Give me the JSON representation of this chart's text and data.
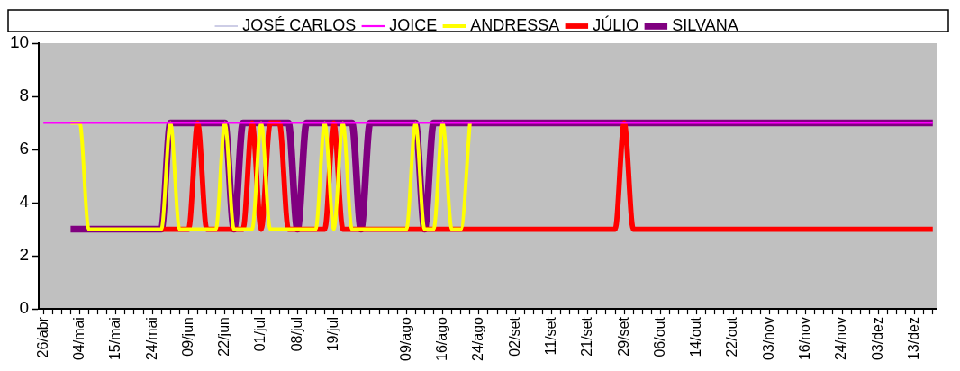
{
  "chart_data": {
    "type": "line",
    "categories": [
      "26/abr",
      null,
      null,
      null,
      "04/mai",
      null,
      null,
      null,
      "15/mai",
      null,
      null,
      null,
      "24/mai",
      null,
      null,
      null,
      "09/jun",
      null,
      null,
      null,
      "22/jun",
      null,
      null,
      null,
      "01/jul",
      null,
      null,
      null,
      "08/jul",
      null,
      null,
      null,
      "19/jul",
      null,
      null,
      null,
      null,
      null,
      null,
      null,
      "09/ago",
      null,
      null,
      null,
      "16/ago",
      null,
      null,
      null,
      "24/ago",
      null,
      null,
      null,
      "02/set",
      null,
      null,
      null,
      "11/set",
      null,
      null,
      null,
      "21/set",
      null,
      null,
      null,
      "29/set",
      null,
      null,
      null,
      "06/out",
      null,
      null,
      null,
      "14/out",
      null,
      null,
      null,
      "22/out",
      null,
      null,
      null,
      "03/nov",
      null,
      null,
      null,
      "16/nov",
      null,
      null,
      null,
      "24/nov",
      null,
      null,
      null,
      "03/dez",
      null,
      null,
      null,
      "13/dez",
      null,
      null
    ],
    "series": [
      {
        "name": "JOSÉ CARLOS",
        "color": "#000080",
        "values": [
          null,
          null,
          null,
          null,
          null,
          null,
          null,
          null,
          null,
          null,
          null,
          null,
          null,
          null,
          null,
          null,
          null,
          null,
          null,
          null,
          null,
          null,
          null,
          null,
          null,
          null,
          null,
          null,
          null,
          null,
          null,
          null,
          null,
          null,
          null,
          null,
          null,
          null,
          null,
          null,
          null,
          null,
          null,
          null,
          null,
          null,
          null,
          null,
          null,
          null,
          null,
          null,
          null,
          null,
          null,
          null,
          null,
          null,
          null,
          null,
          null,
          null,
          null,
          null,
          null,
          null,
          null,
          null,
          null,
          null,
          null,
          null,
          null,
          null,
          null,
          null,
          null,
          null,
          null,
          null,
          null,
          null,
          null,
          null,
          null,
          null,
          null,
          null,
          null,
          null,
          null,
          null,
          null,
          null,
          null,
          null,
          null,
          null,
          null
        ]
      },
      {
        "name": "JOICE",
        "color": "#ff00ff",
        "values": [
          7,
          7,
          7,
          7,
          7,
          7,
          7,
          7,
          7,
          7,
          7,
          7,
          7,
          7,
          7,
          7,
          7,
          7,
          7,
          7,
          7,
          7,
          7,
          7,
          7,
          7,
          7,
          7,
          7,
          7,
          7,
          7,
          7,
          7,
          7,
          7,
          7,
          7,
          7,
          7,
          7,
          7,
          7,
          7,
          7,
          7,
          7,
          7,
          7,
          7,
          7,
          7,
          7,
          7,
          7,
          7,
          7,
          7,
          7,
          7,
          7,
          7,
          7,
          7,
          7,
          7,
          7,
          7,
          7,
          7,
          7,
          7,
          7,
          7,
          7,
          7,
          7,
          7,
          7,
          7,
          7,
          7,
          7,
          7,
          7,
          7,
          7,
          7,
          7,
          7,
          7,
          7,
          7,
          7,
          7,
          7,
          7,
          7,
          7
        ]
      },
      {
        "name": "ANDRESSA",
        "color": "#ffff00",
        "values": [
          null,
          null,
          null,
          7,
          7,
          3,
          3,
          3,
          3,
          3,
          3,
          3,
          3,
          3,
          7,
          3,
          3,
          3,
          3,
          3,
          7,
          3,
          3,
          3,
          7,
          3,
          3,
          3,
          3,
          3,
          3,
          7,
          3,
          7,
          3,
          3,
          3,
          3,
          3,
          3,
          3,
          7,
          3,
          3,
          7,
          3,
          3,
          7,
          null,
          null,
          null,
          null,
          null,
          null,
          null,
          null,
          null,
          null,
          null,
          null,
          null,
          null,
          null,
          null,
          null,
          null,
          null,
          null,
          null,
          null,
          null,
          null,
          null,
          null,
          null,
          null,
          null,
          null,
          null,
          null,
          null,
          null,
          null,
          null,
          null,
          null,
          null,
          null,
          null,
          null,
          null,
          null,
          null,
          null,
          null,
          null,
          null,
          null,
          null
        ]
      },
      {
        "name": "JÚLIO",
        "color": "#ff0000",
        "values": [
          null,
          null,
          null,
          null,
          null,
          null,
          null,
          null,
          null,
          null,
          null,
          null,
          null,
          3,
          3,
          3,
          3,
          7,
          3,
          3,
          3,
          3,
          3,
          7,
          3,
          7,
          7,
          3,
          3,
          3,
          3,
          3,
          7,
          3,
          3,
          3,
          3,
          3,
          3,
          3,
          3,
          3,
          3,
          3,
          3,
          3,
          3,
          3,
          3,
          3,
          3,
          3,
          3,
          3,
          3,
          3,
          3,
          3,
          3,
          3,
          3,
          3,
          3,
          3,
          7,
          3,
          3,
          3,
          3,
          3,
          3,
          3,
          3,
          3,
          3,
          3,
          3,
          3,
          3,
          3,
          3,
          3,
          3,
          3,
          3,
          3,
          3,
          3,
          3,
          3,
          3,
          3,
          3,
          3,
          3,
          3,
          3,
          3,
          3
        ]
      },
      {
        "name": "SILVANA",
        "color": "#800080",
        "values": [
          null,
          null,
          null,
          3,
          3,
          3,
          3,
          3,
          3,
          3,
          3,
          3,
          3,
          3,
          7,
          7,
          7,
          7,
          7,
          7,
          7,
          3,
          7,
          7,
          7,
          7,
          7,
          7,
          3,
          7,
          7,
          7,
          7,
          7,
          7,
          3,
          7,
          7,
          7,
          7,
          7,
          7,
          3,
          7,
          7,
          7,
          7,
          7,
          7,
          7,
          7,
          7,
          7,
          7,
          7,
          7,
          7,
          7,
          7,
          7,
          7,
          7,
          7,
          7,
          7,
          7,
          7,
          7,
          7,
          7,
          7,
          7,
          7,
          7,
          7,
          7,
          7,
          7,
          7,
          7,
          7,
          7,
          7,
          7,
          7,
          7,
          7,
          7,
          7,
          7,
          7,
          7,
          7,
          7,
          7,
          7,
          7,
          7,
          7
        ]
      }
    ],
    "ylim": [
      0,
      10
    ],
    "yticks": [
      0,
      2,
      4,
      6,
      8,
      10
    ],
    "legend": "top",
    "marker": "none",
    "line_style": "solid"
  }
}
